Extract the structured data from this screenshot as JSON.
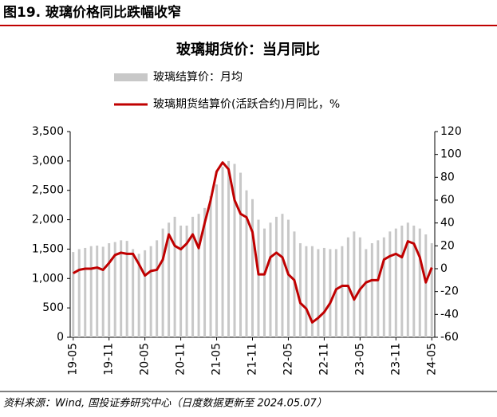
{
  "header": {
    "title": "图19. 玻璃价格同比跌幅收窄",
    "source": "资料来源：Wind, 国投证券研究中心（日度数据更新至 2024.05.07）"
  },
  "chart_data": {
    "type": "combo",
    "title": "玻璃期货价：当月同比",
    "categories": [
      "19-05",
      null,
      null,
      null,
      null,
      null,
      "19-11",
      null,
      null,
      null,
      null,
      null,
      "20-05",
      null,
      null,
      null,
      null,
      null,
      "20-11",
      null,
      null,
      null,
      null,
      null,
      "21-05",
      null,
      null,
      null,
      null,
      null,
      "21-11",
      null,
      null,
      null,
      null,
      null,
      "22-05",
      null,
      null,
      null,
      null,
      null,
      "22-11",
      null,
      null,
      null,
      null,
      null,
      "23-05",
      null,
      null,
      null,
      null,
      null,
      "23-11",
      null,
      null,
      null,
      null,
      null,
      "24-05"
    ],
    "series": [
      {
        "name": "玻璃结算价：月均",
        "type": "bar",
        "color": "#c8c8c8",
        "values": [
          1450,
          1500,
          1520,
          1550,
          1560,
          1540,
          1600,
          1620,
          1650,
          1640,
          1500,
          1420,
          1480,
          1550,
          1650,
          1850,
          1950,
          2050,
          1900,
          1900,
          2050,
          2100,
          2200,
          2400,
          2600,
          2900,
          3000,
          2950,
          2800,
          2500,
          2350,
          2000,
          1850,
          1950,
          2050,
          2100,
          2000,
          1800,
          1600,
          1550,
          1550,
          1500,
          1520,
          1500,
          1500,
          1550,
          1700,
          1800,
          1700,
          1500,
          1600,
          1650,
          1700,
          1800,
          1850,
          1900,
          1950,
          1900,
          1850,
          1750,
          1600
        ]
      },
      {
        "name": "玻璃期货结算价(活跃合约)月同比，%",
        "type": "line",
        "axis": "y2",
        "color": "#c00000",
        "values": [
          -4,
          -1,
          0,
          0,
          1,
          -1,
          5,
          12,
          14,
          13,
          13,
          4,
          -6,
          -2,
          -1,
          8,
          30,
          20,
          17,
          22,
          30,
          18,
          40,
          60,
          85,
          93,
          87,
          60,
          48,
          45,
          32,
          -5,
          -5,
          10,
          14,
          10,
          -5,
          -10,
          -30,
          -35,
          -47,
          -43,
          -38,
          -30,
          -18,
          -15,
          -15,
          -27,
          -18,
          -12,
          -10,
          -10,
          8,
          11,
          13,
          10,
          24,
          22,
          10,
          -12,
          1
        ]
      }
    ],
    "ylim": [
      0,
      3500
    ],
    "yticks": [
      0,
      500,
      {
        "value": 1000,
        "label": "1,000"
      },
      {
        "value": 1500,
        "label": "1,500"
      },
      {
        "value": 2000,
        "label": "2,000"
      },
      {
        "value": 2500,
        "label": "2,500"
      },
      {
        "value": 3000,
        "label": "3,000"
      },
      {
        "value": 3500,
        "label": "3,500"
      }
    ],
    "y2lim": [
      -60,
      120
    ],
    "y2ticks": [
      -60,
      -40,
      -20,
      0,
      20,
      40,
      60,
      80,
      100,
      120
    ],
    "grid": false
  }
}
